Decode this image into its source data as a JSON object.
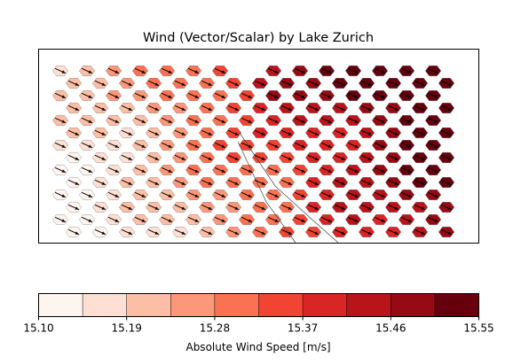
{
  "chart_data": {
    "type": "heatmap",
    "subtype": "hexagonal wind field with direction arrows and lake outline",
    "title": "Wind (Vector/Scalar) by Lake Zurich",
    "colorbar": {
      "label": "Absolute Wind Speed [m/s]",
      "colormap": "Reds",
      "levels": 9,
      "range": [
        15.1,
        15.55
      ],
      "tick_values": [
        15.1,
        15.19,
        15.28,
        15.37,
        15.46,
        15.55
      ],
      "tick_labels": [
        "15.10",
        "15.19",
        "15.28",
        "15.37",
        "15.46",
        "15.55"
      ],
      "colors": [
        "#fff5f0",
        "#fedfd3",
        "#fcbea5",
        "#fc9879",
        "#fb7252",
        "#f14432",
        "#d92523",
        "#b81419",
        "#960b13",
        "#67000d"
      ]
    },
    "field": {
      "speed_min_west": 15.1,
      "speed_max_east": 15.55,
      "gradient_direction": "increasing from south-west to north-east",
      "arrow_direction": "pointing east-south-east",
      "grid": false,
      "axes_ticks_visible": false
    }
  }
}
